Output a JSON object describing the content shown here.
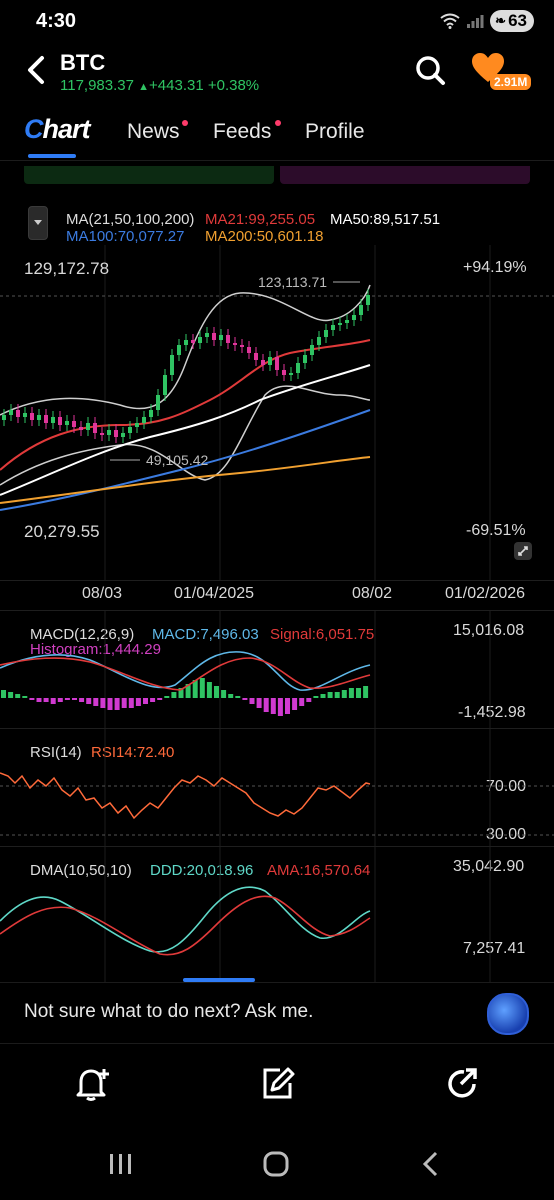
{
  "status": {
    "time": "4:30",
    "battery": "63"
  },
  "header": {
    "symbol": "BTC",
    "price": "117,983.37",
    "arrow": "▲",
    "change": "+443.31",
    "change_pct": "+0.38%",
    "badge": "2.91M"
  },
  "tabs": {
    "chart": "Chart",
    "news": "News",
    "feeds": "Feeds",
    "profile": "Profile"
  },
  "ma": {
    "label": "MA(21,50,100,200)",
    "ma21": "MA21:99,255.05",
    "ma50": "MA50:89,517.51",
    "ma100": "MA100:70,077.27",
    "ma200": "MA200:50,601.18"
  },
  "chart": {
    "top_price": "129,172.78",
    "top_pct": "+94.19%",
    "high_mark": "123,113.71",
    "low_mark": "49,105.42",
    "bottom_price": "20,279.55",
    "bottom_pct": "-69.51%",
    "x_labels": [
      "08/03",
      "01/04/2025",
      "08/02",
      "01/02/2026"
    ]
  },
  "macd": {
    "label": "MACD(12,26,9)",
    "macd": "MACD:7,496.03",
    "signal": "Signal:6,051.75",
    "histogram": "Histogram:1,444.29",
    "top": "15,016.08",
    "bottom": "-1,452.98"
  },
  "rsi": {
    "label": "RSI(14)",
    "value": "RSI14:72.40",
    "level_high": "70.00",
    "level_low": "30.00"
  },
  "dma": {
    "label": "DMA(10,50,10)",
    "ddd": "DDD:20,018.96",
    "ama": "AMA:16,570.64",
    "top": "35,042.90",
    "bottom": "7,257.41"
  },
  "ask": {
    "prompt": "Not sure what to do next? Ask me."
  },
  "colors": {
    "up": "#2fc463",
    "down": "#e0359a",
    "ma21": "#e03a3a",
    "ma50": "#ffffff",
    "ma100": "#3b7be0",
    "ma200": "#f0a030",
    "accent": "#2f7cf6"
  }
}
